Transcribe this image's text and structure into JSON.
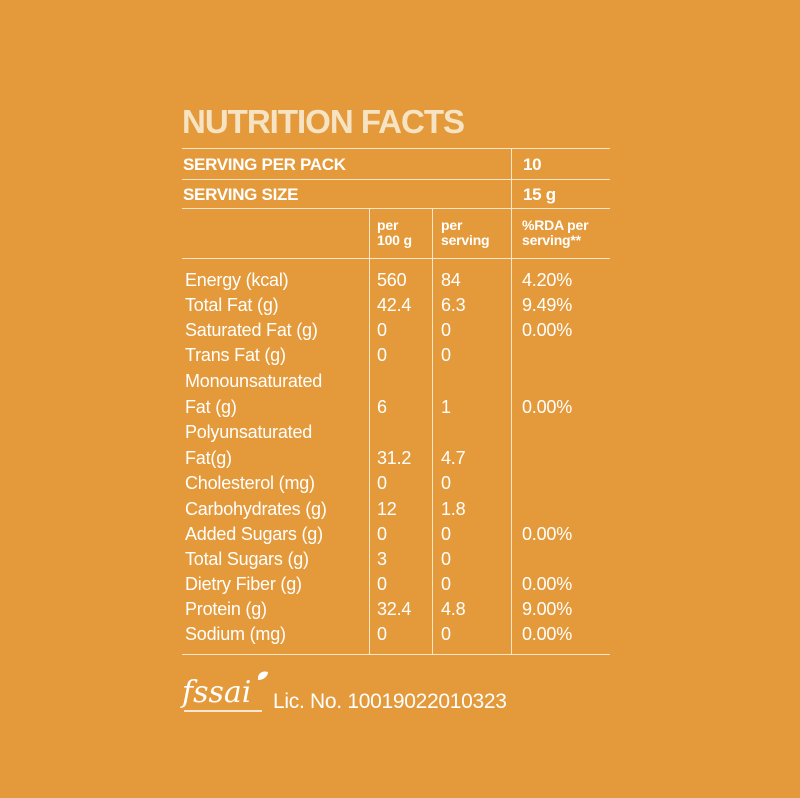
{
  "title": "NUTRITION FACTS",
  "serving_per_pack": {
    "label": "SERVING PER PACK",
    "value": "10"
  },
  "serving_size": {
    "label": "SERVING SIZE",
    "value": "15 g"
  },
  "columns": {
    "per100": "per\n100 g",
    "perServing": "per\nserving",
    "rda": "%RDA per\nserving**"
  },
  "rows": [
    {
      "name": "Energy (kcal)",
      "per100": "560",
      "perServing": "84",
      "rda": "4.20%"
    },
    {
      "name": "Total Fat (g)",
      "per100": "42.4",
      "perServing": "6.3",
      "rda": "9.49%"
    },
    {
      "name": "Saturated Fat (g)",
      "per100": "0",
      "perServing": "0",
      "rda": "0.00%"
    },
    {
      "name": "Trans Fat (g)",
      "per100": "0",
      "perServing": "0",
      "rda": ""
    },
    {
      "name": "Monounsaturated",
      "per100": "",
      "perServing": "",
      "rda": ""
    },
    {
      "name": "Fat (g)",
      "per100": "6",
      "perServing": "1",
      "rda": "0.00%"
    },
    {
      "name": "Polyunsaturated",
      "per100": "",
      "perServing": "",
      "rda": ""
    },
    {
      "name": "Fat(g)",
      "per100": "31.2",
      "perServing": "4.7",
      "rda": ""
    },
    {
      "name": "Cholesterol (mg)",
      "per100": "0",
      "perServing": "0",
      "rda": ""
    },
    {
      "name": "Carbohydrates (g)",
      "per100": "12",
      "perServing": "1.8",
      "rda": ""
    },
    {
      "name": "Added Sugars (g)",
      "per100": "0",
      "perServing": "0",
      "rda": "0.00%"
    },
    {
      "name": "Total Sugars (g)",
      "per100": "3",
      "perServing": "0",
      "rda": ""
    },
    {
      "name": "Dietry Fiber (g)",
      "per100": "0",
      "perServing": "0",
      "rda": "0.00%"
    },
    {
      "name": "Protein (g)",
      "per100": "32.4",
      "perServing": "4.8",
      "rda": "9.00%"
    },
    {
      "name": "Sodium (mg)",
      "per100": "0",
      "perServing": "0",
      "rda": "0.00%"
    }
  ],
  "fssai": {
    "logo_text": "fssai",
    "license": "Lic. No. 10019022010323"
  },
  "colors": {
    "background": "#e49a3a",
    "title": "#f6e3c4",
    "text": "#ffffff"
  }
}
